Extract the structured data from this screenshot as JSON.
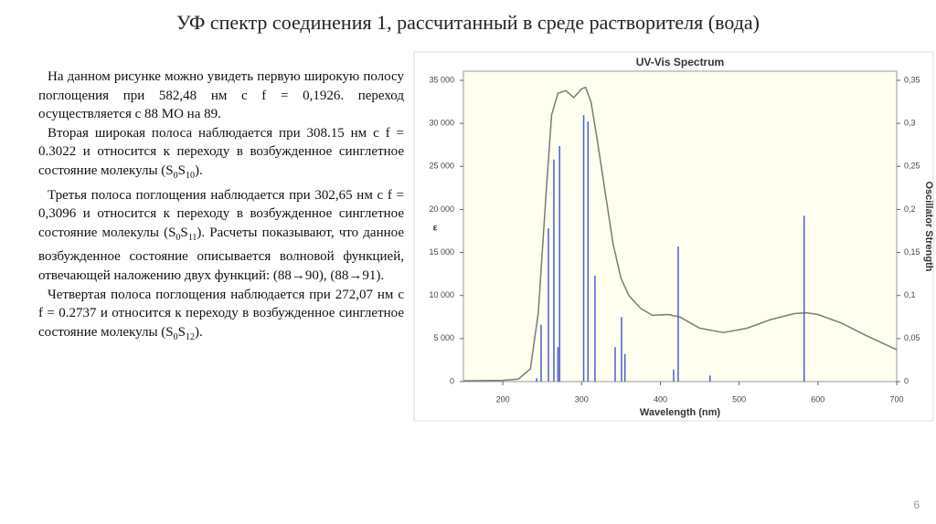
{
  "header": {
    "title": "УФ спектр соединения 1, рассчитанный в среде растворителя (вода)"
  },
  "paragraphs": [
    [
      {
        "text": "На данном рисунке можно увидеть первую широкую полосу поглощения при 582,48 нм с f = 0,1926. переход осуществляется с 88 МО на 89."
      }
    ],
    [
      {
        "text": "Вторая широкая полоса наблюдается при 308.15 нм с f = 0.3022 и относится к переходу в возбужденное синглетное состояние молекулы (S"
      },
      {
        "text": "0",
        "sub": true
      },
      {
        "text": "S"
      },
      {
        "text": "10",
        "sub": true
      },
      {
        "text": ")."
      }
    ],
    [
      {
        "text": "Третья полоса поглощения наблюдается при 302,65 нм с f = 0,3096 и относится к переходу в возбужденное синглетное состояние молекулы (S"
      },
      {
        "text": "0",
        "sub": true
      },
      {
        "text": "S"
      },
      {
        "text": "11",
        "sub": true
      },
      {
        "text": "). Расчеты показывают, что данное возбужденное состояние описывается волновой функцией, отвечающей наложению двух функций: (88→90), (88→91)."
      }
    ],
    [
      {
        "text": "Четвертая полоса поглощения наблюдается при 272,07 нм с f = 0.2737 и относится к переходу в возбужденное синглетное состояние молекулы (S"
      },
      {
        "text": "0",
        "sub": true
      },
      {
        "text": "S"
      },
      {
        "text": "12",
        "sub": true
      },
      {
        "text": ")."
      }
    ]
  ],
  "page_number": "6",
  "chart_data": {
    "type": "line",
    "title": "UV-Vis Spectrum",
    "x_label": "Wavelength (nm)",
    "y_label": "ε",
    "y2_label": "Oscillator Strength",
    "xlim": [
      150,
      700
    ],
    "xticks": [
      200,
      300,
      400,
      500,
      600,
      700
    ],
    "ylim": [
      0,
      35000
    ],
    "yticks": [
      {
        "value": 0,
        "label": "0"
      },
      {
        "value": 5000,
        "label": "5 000"
      },
      {
        "value": 10000,
        "label": "10 000"
      },
      {
        "value": 15000,
        "label": "15 000"
      },
      {
        "value": 20000,
        "label": "20 000"
      },
      {
        "value": 25000,
        "label": "25 000"
      },
      {
        "value": 30000,
        "label": "30 000"
      },
      {
        "value": 35000,
        "label": "35 000"
      }
    ],
    "y2lim": [
      0,
      0.35
    ],
    "y2ticks": [
      {
        "value": 0,
        "label": "0"
      },
      {
        "value": 0.05,
        "label": "0,05"
      },
      {
        "value": 0.1,
        "label": "0,1"
      },
      {
        "value": 0.15,
        "label": "0,15"
      },
      {
        "value": 0.2,
        "label": "0,2"
      },
      {
        "value": 0.25,
        "label": "0,25"
      },
      {
        "value": 0.3,
        "label": "0,3"
      },
      {
        "value": 0.35,
        "label": "0,35"
      }
    ],
    "series": [
      {
        "color": "#7a7a7a",
        "x": [
          150,
          200,
          220,
          235,
          245,
          255,
          262,
          270,
          280,
          290,
          300,
          305,
          312,
          320,
          330,
          340,
          350,
          360,
          375,
          390,
          410,
          425,
          450,
          480,
          510,
          540,
          570,
          585,
          600,
          630,
          660,
          700
        ],
        "values": [
          100,
          150,
          300,
          1500,
          8000,
          22000,
          31000,
          33500,
          33800,
          33000,
          34000,
          34200,
          32500,
          28000,
          22000,
          16000,
          12000,
          10000,
          8500,
          7700,
          7800,
          7500,
          6200,
          5700,
          6200,
          7200,
          7900,
          8000,
          7800,
          6800,
          5400,
          3700
        ]
      },
      {
        "color": "#4a5fd0",
        "axis": "y2",
        "type": "stick",
        "x": [
          243,
          248.6,
          257.9,
          264.8,
          270,
          272.07,
          302.65,
          308.15,
          317,
          342.6,
          350.7,
          355,
          416.8,
          422.6,
          463,
          582.48
        ],
        "values": [
          0.004,
          0.066,
          0.178,
          0.258,
          0.04,
          0.2737,
          0.3096,
          0.3022,
          0.123,
          0.04,
          0.075,
          0.032,
          0.014,
          0.157,
          0.007,
          0.1926
        ]
      }
    ]
  }
}
